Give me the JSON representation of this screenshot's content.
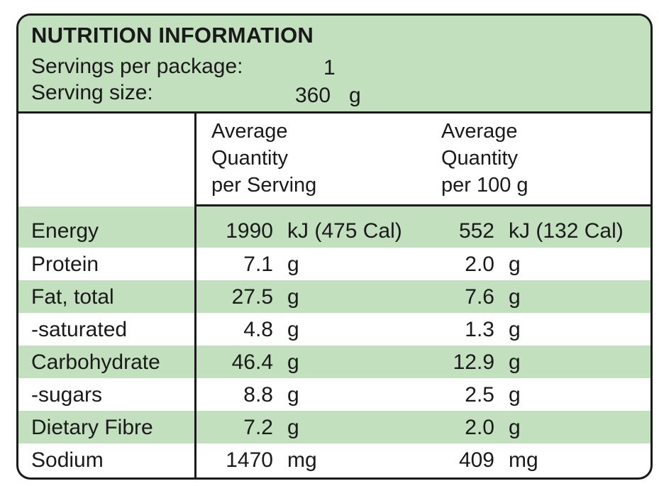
{
  "header": {
    "title": "NUTRITION INFORMATION",
    "servings_label": "Servings per package:",
    "servings_value": "1",
    "size_label": "Serving size:",
    "size_value": "360",
    "size_unit": "g"
  },
  "columns": {
    "per_serving": [
      "Average",
      "Quantity",
      "per Serving"
    ],
    "per_100g": [
      "Average",
      "Quantity",
      "per 100 g"
    ]
  },
  "rows": [
    {
      "label": "Energy",
      "serving": "1990",
      "serving_unit": "kJ (475 Cal)",
      "per100": "552",
      "per100_unit": "kJ (132 Cal)"
    },
    {
      "label": "Protein",
      "serving": "7.1",
      "serving_unit": "g",
      "per100": "2.0",
      "per100_unit": "g"
    },
    {
      "label": "Fat, total",
      "serving": "27.5",
      "serving_unit": "g",
      "per100": "7.6",
      "per100_unit": "g"
    },
    {
      "label": "-saturated",
      "serving": "4.8",
      "serving_unit": "g",
      "per100": "1.3",
      "per100_unit": "g"
    },
    {
      "label": "Carbohydrate",
      "serving": "46.4",
      "serving_unit": "g",
      "per100": "12.9",
      "per100_unit": "g"
    },
    {
      "label": "-sugars",
      "serving": "8.8",
      "serving_unit": "g",
      "per100": "2.5",
      "per100_unit": "g"
    },
    {
      "label": "Dietary Fibre",
      "serving": "7.2",
      "serving_unit": "g",
      "per100": "2.0",
      "per100_unit": "g"
    },
    {
      "label": "Sodium",
      "serving": "1470",
      "serving_unit": "mg",
      "per100": "409",
      "per100_unit": "mg"
    }
  ],
  "colors": {
    "band": "#c2dfbe",
    "border": "#1a1a1a"
  }
}
